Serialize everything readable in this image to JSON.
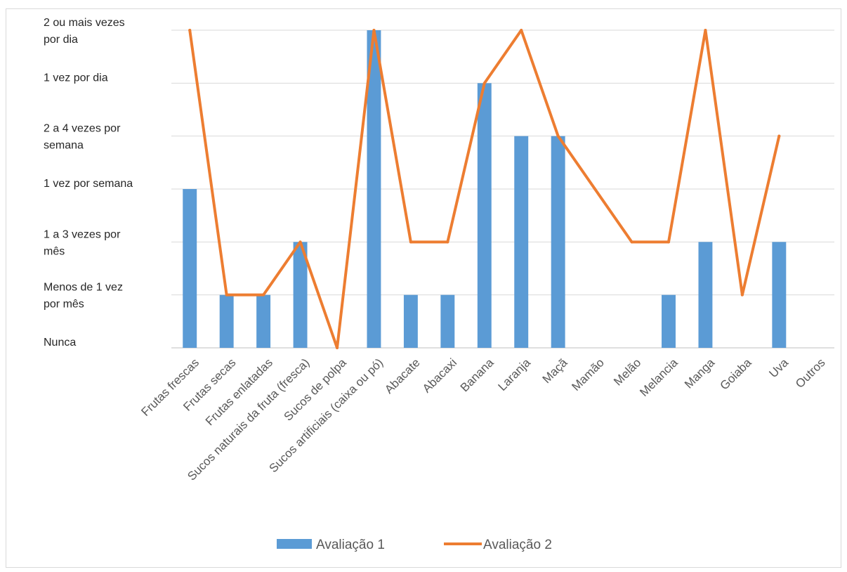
{
  "chart_data": {
    "type": "bar",
    "title": "",
    "xlabel": "",
    "ylabel": "",
    "categories": [
      "Frutas frescas",
      "Frutas secas",
      "Frutas enlatadas",
      "Sucos naturais da fruta (fresca)",
      "Sucos de polpa",
      "Sucos artificiais (caixa ou pó)",
      "Abacate",
      "Abacaxi",
      "Banana",
      "Laranja",
      "Maçã",
      "Mamão",
      "Melão",
      "Melancia",
      "Manga",
      "Goiaba",
      "Uva",
      "Outros"
    ],
    "y_levels": [
      [
        "Nunca"
      ],
      [
        "Menos de 1 vez",
        "por mês"
      ],
      [
        "1 a 3 vezes por",
        "mês"
      ],
      [
        "1 vez por semana"
      ],
      [
        "2 a 4 vezes por",
        "semana"
      ],
      [
        "1 vez por dia"
      ],
      [
        "2 ou mais vezes",
        "por dia"
      ]
    ],
    "ylim": [
      0,
      6
    ],
    "grid": true,
    "legend_position": "bottom",
    "series": [
      {
        "name": "Avaliação 1",
        "kind": "bar",
        "color": "#5b9bd5",
        "values": [
          3,
          1,
          1,
          2,
          0,
          6,
          1,
          1,
          5,
          4,
          4,
          0,
          0,
          1,
          2,
          0,
          2,
          0
        ]
      },
      {
        "name": "Avaliação 2",
        "kind": "line",
        "color": "#ed7d31",
        "values": [
          6,
          1,
          1,
          2,
          0,
          6,
          2,
          2,
          5,
          6,
          4,
          3,
          2,
          2,
          6,
          1,
          4,
          null
        ]
      }
    ]
  }
}
